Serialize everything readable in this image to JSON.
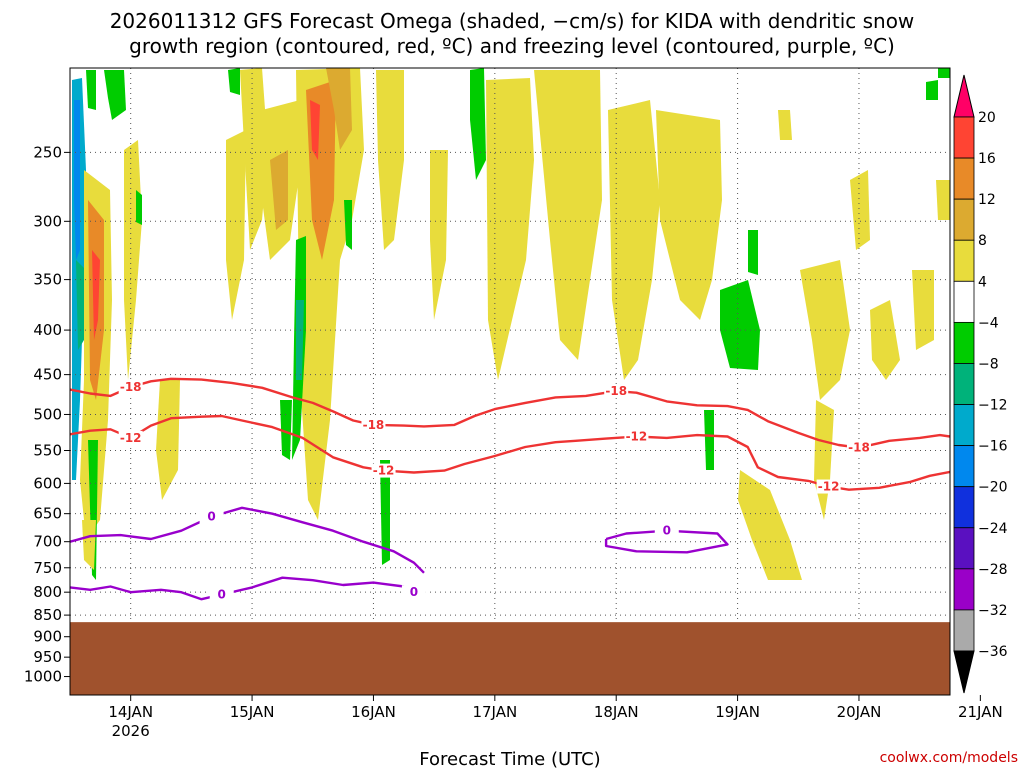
{
  "title_lines": [
    "2026011312 GFS Forecast Omega (shaded, −cm/s) for KIDA with dendritic snow",
    "growth region (contoured, red, ºC) and freezing level (contoured, purple, ºC)"
  ],
  "credit": "coolwx.com/models",
  "chart_data": {
    "type": "heatmap",
    "title": "2026011312 GFS Forecast Omega (shaded, −cm/s) for KIDA with dendritic snow growth region (contoured, red, ºC) and freezing level (contoured, purple, ºC)",
    "xlabel": "Forecast Time (UTC)",
    "ylabel": "",
    "x_range_hours": [
      0,
      174
    ],
    "x_ticks": [
      {
        "hour": 12,
        "label": "14JAN",
        "sublabel": "2026"
      },
      {
        "hour": 36,
        "label": "15JAN"
      },
      {
        "hour": 60,
        "label": "16JAN"
      },
      {
        "hour": 84,
        "label": "17JAN"
      },
      {
        "hour": 108,
        "label": "18JAN"
      },
      {
        "hour": 132,
        "label": "19JAN"
      },
      {
        "hour": 156,
        "label": "20JAN"
      },
      {
        "hour": 180,
        "label": "21JAN"
      }
    ],
    "y_scale": "log-pressure (inverted)",
    "y_range_hpa": [
      200,
      1050
    ],
    "y_ticks": [
      250,
      300,
      350,
      400,
      450,
      500,
      550,
      600,
      650,
      700,
      750,
      800,
      850,
      900,
      950,
      1000
    ],
    "grid": true,
    "ground_level_hpa": 866,
    "ground_color": "#a0522d",
    "colorbar": {
      "labels": [
        "20",
        "16",
        "12",
        "8",
        "4",
        "−4",
        "−8",
        "−12",
        "−16",
        "−20",
        "−24",
        "−28",
        "−32",
        "−36"
      ],
      "colors": [
        "#ff0066",
        "#ff4433",
        "#e88a28",
        "#dcaa30",
        "#e8dc3c",
        "#ffffff",
        "#00cc00",
        "#00b27a",
        "#00aacc",
        "#0088ee",
        "#1030dd",
        "#5a10c0",
        "#9a00c8",
        "#aaaaaa",
        "#000000"
      ]
    },
    "contour_series": [
      {
        "name": "-18",
        "color": "#ee3333",
        "points": [
          [
            0,
            468
          ],
          [
            4,
            473
          ],
          [
            8,
            476
          ],
          [
            12,
            465
          ],
          [
            16,
            458
          ],
          [
            20,
            455
          ],
          [
            26,
            456
          ],
          [
            32,
            460
          ],
          [
            38,
            466
          ],
          [
            44,
            478
          ],
          [
            48,
            485
          ],
          [
            52,
            496
          ],
          [
            56,
            508
          ],
          [
            60,
            514
          ],
          [
            66,
            515
          ],
          [
            70,
            516
          ],
          [
            76,
            514
          ],
          [
            80,
            502
          ],
          [
            84,
            493
          ],
          [
            90,
            485
          ],
          [
            96,
            478
          ],
          [
            102,
            476
          ],
          [
            108,
            470
          ],
          [
            112,
            472
          ],
          [
            118,
            483
          ],
          [
            124,
            488
          ],
          [
            130,
            489
          ],
          [
            134,
            494
          ],
          [
            138,
            509
          ],
          [
            144,
            525
          ],
          [
            148,
            535
          ],
          [
            152,
            542
          ],
          [
            156,
            546
          ],
          [
            162,
            536
          ],
          [
            168,
            532
          ],
          [
            172,
            528
          ],
          [
            174,
            530
          ]
        ],
        "labels_at_hours": [
          14,
          62,
          108,
          156
        ]
      },
      {
        "name": "-12",
        "color": "#ee3333",
        "points": [
          [
            0,
            527
          ],
          [
            4,
            522
          ],
          [
            8,
            520
          ],
          [
            12,
            532
          ],
          [
            16,
            515
          ],
          [
            20,
            505
          ],
          [
            26,
            503
          ],
          [
            30,
            502
          ],
          [
            34,
            508
          ],
          [
            40,
            517
          ],
          [
            46,
            532
          ],
          [
            52,
            560
          ],
          [
            58,
            575
          ],
          [
            62,
            580
          ],
          [
            68,
            583
          ],
          [
            74,
            580
          ],
          [
            78,
            570
          ],
          [
            84,
            558
          ],
          [
            90,
            545
          ],
          [
            96,
            538
          ],
          [
            100,
            536
          ],
          [
            106,
            533
          ],
          [
            112,
            530
          ],
          [
            118,
            532
          ],
          [
            124,
            528
          ],
          [
            130,
            530
          ],
          [
            134,
            545
          ],
          [
            136,
            575
          ],
          [
            140,
            590
          ],
          [
            146,
            596
          ],
          [
            150,
            605
          ],
          [
            154,
            610
          ],
          [
            160,
            607
          ],
          [
            166,
            598
          ],
          [
            170,
            588
          ],
          [
            174,
            582
          ]
        ],
        "labels_at_hours": [
          14,
          62,
          110,
          152
        ]
      },
      {
        "name": "0",
        "color": "#9900cc",
        "points": [
          [
            0,
            700
          ],
          [
            4,
            690
          ],
          [
            10,
            688
          ],
          [
            16,
            695
          ],
          [
            22,
            680
          ],
          [
            28,
            655
          ],
          [
            34,
            640
          ],
          [
            40,
            650
          ],
          [
            46,
            665
          ],
          [
            52,
            680
          ],
          [
            58,
            700
          ],
          [
            64,
            718
          ],
          [
            68,
            740
          ],
          [
            70,
            760
          ]
        ],
        "labels_at_hours": [
          28
        ]
      },
      {
        "name": "0",
        "color": "#9900cc",
        "points": [
          [
            0,
            790
          ],
          [
            4,
            795
          ],
          [
            8,
            788
          ],
          [
            12,
            800
          ],
          [
            18,
            795
          ],
          [
            22,
            800
          ],
          [
            26,
            815
          ],
          [
            30,
            805
          ],
          [
            36,
            790
          ],
          [
            42,
            770
          ],
          [
            48,
            775
          ],
          [
            54,
            785
          ],
          [
            60,
            780
          ],
          [
            66,
            788
          ],
          [
            68,
            800
          ]
        ],
        "labels_at_hours": [
          30,
          68
        ]
      },
      {
        "name": "0",
        "color": "#9900cc",
        "points": [
          [
            106,
            695
          ],
          [
            110,
            685
          ],
          [
            118,
            680
          ],
          [
            128,
            685
          ],
          [
            130,
            705
          ],
          [
            122,
            720
          ],
          [
            112,
            718
          ],
          [
            106,
            708
          ],
          [
            106,
            695
          ]
        ],
        "labels_at_hours": [
          118
        ]
      }
    ]
  }
}
